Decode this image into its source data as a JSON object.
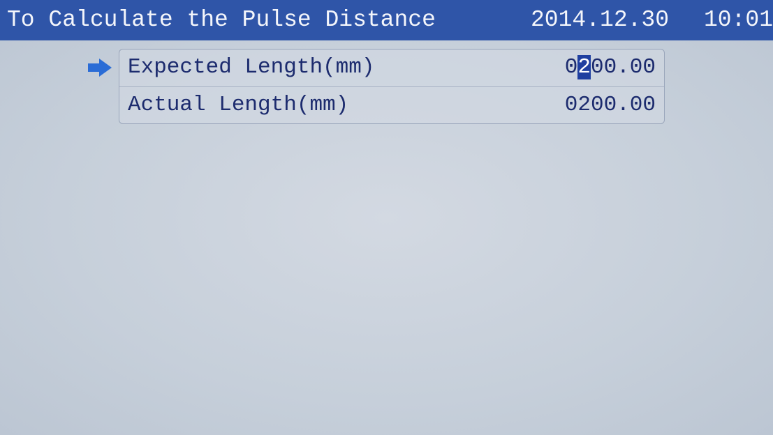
{
  "header": {
    "title": "To Calculate the Pulse Distance",
    "date": "2014.12.30",
    "time": "10:01"
  },
  "fields": [
    {
      "label": "Expected Length(mm)",
      "value": "0200.00"
    },
    {
      "label": "Actual Length(mm)",
      "value": "0200.00"
    }
  ]
}
